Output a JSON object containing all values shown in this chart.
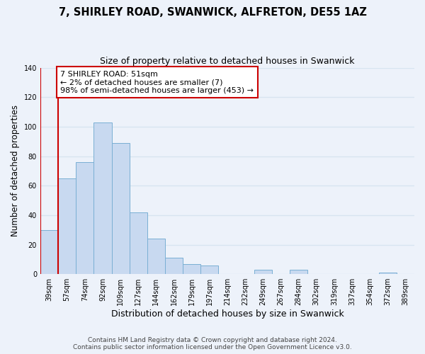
{
  "title": "7, SHIRLEY ROAD, SWANWICK, ALFRETON, DE55 1AZ",
  "subtitle": "Size of property relative to detached houses in Swanwick",
  "xlabel": "Distribution of detached houses by size in Swanwick",
  "ylabel": "Number of detached properties",
  "bar_labels": [
    "39sqm",
    "57sqm",
    "74sqm",
    "92sqm",
    "109sqm",
    "127sqm",
    "144sqm",
    "162sqm",
    "179sqm",
    "197sqm",
    "214sqm",
    "232sqm",
    "249sqm",
    "267sqm",
    "284sqm",
    "302sqm",
    "319sqm",
    "337sqm",
    "354sqm",
    "372sqm",
    "389sqm"
  ],
  "bar_values": [
    30,
    65,
    76,
    103,
    89,
    42,
    24,
    11,
    7,
    6,
    0,
    0,
    3,
    0,
    3,
    0,
    0,
    0,
    0,
    1,
    0
  ],
  "bar_color": "#c8d9f0",
  "bar_edge_color": "#7aafd4",
  "ylim": [
    0,
    140
  ],
  "yticks": [
    0,
    20,
    40,
    60,
    80,
    100,
    120,
    140
  ],
  "red_line_x": 1.0,
  "annotation_text": "7 SHIRLEY ROAD: 51sqm\n← 2% of detached houses are smaller (7)\n98% of semi-detached houses are larger (453) →",
  "annotation_box_edgecolor": "#cc0000",
  "annotation_box_facecolor": "#ffffff",
  "red_line_color": "#cc0000",
  "footer_line1": "Contains HM Land Registry data © Crown copyright and database right 2024.",
  "footer_line2": "Contains public sector information licensed under the Open Government Licence v3.0.",
  "background_color": "#edf2fa",
  "grid_color": "#d8e4f0",
  "title_fontsize": 10.5,
  "subtitle_fontsize": 9
}
